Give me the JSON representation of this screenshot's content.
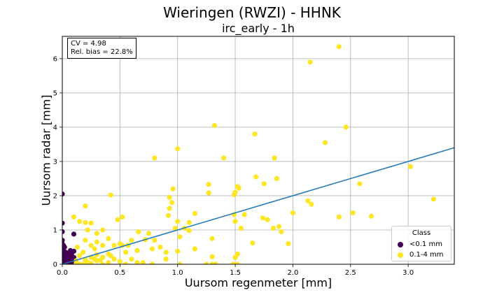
{
  "chart_data": {
    "type": "scatter",
    "title": "Wieringen (RWZI) - HHNK",
    "subtitle": "irc_early - 1h",
    "xlabel": "Uursom regenmeter [mm]",
    "ylabel": "Uursom radar [mm]",
    "xlim": [
      0,
      3.4
    ],
    "ylim": [
      0,
      6.65
    ],
    "xticks": [
      "0.0",
      "0.5",
      "1.0",
      "1.5",
      "2.0",
      "2.5",
      "3.0"
    ],
    "yticks": [
      "0",
      "1",
      "2",
      "3",
      "4",
      "5",
      "6"
    ],
    "grid": true,
    "stats": [
      "CV = 4.98",
      "Rel. bias = 22.8%"
    ],
    "legend": {
      "title": "Class",
      "position": "lower-right"
    },
    "regression_line": {
      "slope": 1.0,
      "intercept": 0.0,
      "color": "#1f77b4"
    },
    "series": [
      {
        "name": "<0.1 mm",
        "color": "#440154",
        "points": [
          [
            0.0,
            2.05
          ],
          [
            0.0,
            1.2
          ],
          [
            0.0,
            0.95
          ],
          [
            0.0,
            0.7
          ],
          [
            0.0,
            0.6
          ],
          [
            0.0,
            0.5
          ],
          [
            0.0,
            0.45
          ],
          [
            0.0,
            0.35
          ],
          [
            0.0,
            0.3
          ],
          [
            0.0,
            0.25
          ],
          [
            0.0,
            0.2
          ],
          [
            0.0,
            0.15
          ],
          [
            0.0,
            0.1
          ],
          [
            0.0,
            0.05
          ],
          [
            0.0,
            0.0
          ],
          [
            0.01,
            0.55
          ],
          [
            0.01,
            0.4
          ],
          [
            0.01,
            0.3
          ],
          [
            0.01,
            0.12
          ],
          [
            0.02,
            0.5
          ],
          [
            0.02,
            0.25
          ],
          [
            0.02,
            0.08
          ],
          [
            0.03,
            0.35
          ],
          [
            0.03,
            0.2
          ],
          [
            0.03,
            0.05
          ],
          [
            0.04,
            0.3
          ],
          [
            0.04,
            0.15
          ],
          [
            0.05,
            0.22
          ],
          [
            0.05,
            0.1
          ],
          [
            0.06,
            0.18
          ],
          [
            0.06,
            0.3
          ],
          [
            0.07,
            0.05
          ],
          [
            0.07,
            0.4
          ],
          [
            0.08,
            0.12
          ],
          [
            0.08,
            0.28
          ],
          [
            0.09,
            0.02
          ],
          [
            0.1,
            0.88
          ],
          [
            0.1,
            0.2
          ],
          [
            0.1,
            0.38
          ],
          [
            0.11,
            0.1
          ]
        ]
      },
      {
        "name": "0.1-4 mm",
        "color": "#fde725",
        "points": [
          [
            2.4,
            6.35
          ],
          [
            2.15,
            5.9
          ],
          [
            1.32,
            4.05
          ],
          [
            2.46,
            4.0
          ],
          [
            1.67,
            3.8
          ],
          [
            2.28,
            3.55
          ],
          [
            1.0,
            3.37
          ],
          [
            0.8,
            3.1
          ],
          [
            1.4,
            3.1
          ],
          [
            1.84,
            3.1
          ],
          [
            3.02,
            2.85
          ],
          [
            1.68,
            2.55
          ],
          [
            1.86,
            2.5
          ],
          [
            1.75,
            2.35
          ],
          [
            2.58,
            2.35
          ],
          [
            1.27,
            2.33
          ],
          [
            1.52,
            2.27
          ],
          [
            1.53,
            2.22
          ],
          [
            0.96,
            2.2
          ],
          [
            1.5,
            2.1
          ],
          [
            1.27,
            2.08
          ],
          [
            0.42,
            2.02
          ],
          [
            1.49,
            2.03
          ],
          [
            0.93,
            1.95
          ],
          [
            3.22,
            1.9
          ],
          [
            0.95,
            1.8
          ],
          [
            2.13,
            1.85
          ],
          [
            2.16,
            1.75
          ],
          [
            0.2,
            1.7
          ],
          [
            0.93,
            1.63
          ],
          [
            2.52,
            1.5
          ],
          [
            2.0,
            1.5
          ],
          [
            1.15,
            1.48
          ],
          [
            1.49,
            1.45
          ],
          [
            1.58,
            1.45
          ],
          [
            0.92,
            1.42
          ],
          [
            0.1,
            1.38
          ],
          [
            0.52,
            1.38
          ],
          [
            0.48,
            1.3
          ],
          [
            0.15,
            1.25
          ],
          [
            0.2,
            1.22
          ],
          [
            0.25,
            1.2
          ],
          [
            1.74,
            1.35
          ],
          [
            1.78,
            1.3
          ],
          [
            2.4,
            1.38
          ],
          [
            2.68,
            1.4
          ],
          [
            1.5,
            1.25
          ],
          [
            1.1,
            1.22
          ],
          [
            1.0,
            1.25
          ],
          [
            1.55,
            1.05
          ],
          [
            1.83,
            1.05
          ],
          [
            1.88,
            1.1
          ],
          [
            1.06,
            1.05
          ],
          [
            0.98,
            1.05
          ],
          [
            1.1,
            0.98
          ],
          [
            0.35,
            1.0
          ],
          [
            0.22,
            1.0
          ],
          [
            1.9,
            0.95
          ],
          [
            0.66,
            0.95
          ],
          [
            0.75,
            0.9
          ],
          [
            0.3,
            0.9
          ],
          [
            1.02,
            0.8
          ],
          [
            1.3,
            0.75
          ],
          [
            0.72,
            0.72
          ],
          [
            0.6,
            0.7
          ],
          [
            0.8,
            0.7
          ],
          [
            0.4,
            0.75
          ],
          [
            0.2,
            0.7
          ],
          [
            0.3,
            0.65
          ],
          [
            0.5,
            0.6
          ],
          [
            1.65,
            0.62
          ],
          [
            1.96,
            0.6
          ],
          [
            0.25,
            0.55
          ],
          [
            0.35,
            0.55
          ],
          [
            0.45,
            0.55
          ],
          [
            0.52,
            0.55
          ],
          [
            0.57,
            0.55
          ],
          [
            0.85,
            0.5
          ],
          [
            0.78,
            0.45
          ],
          [
            0.13,
            0.5
          ],
          [
            0.28,
            0.45
          ],
          [
            0.65,
            0.4
          ],
          [
            1.15,
            0.45
          ],
          [
            0.9,
            0.35
          ],
          [
            1.0,
            0.38
          ],
          [
            0.55,
            0.35
          ],
          [
            0.18,
            0.35
          ],
          [
            0.4,
            0.3
          ],
          [
            0.3,
            0.28
          ],
          [
            1.52,
            0.3
          ],
          [
            1.5,
            0.2
          ],
          [
            1.3,
            0.22
          ],
          [
            0.15,
            0.25
          ],
          [
            0.25,
            0.2
          ],
          [
            0.35,
            0.2
          ],
          [
            0.45,
            0.15
          ],
          [
            0.6,
            0.15
          ],
          [
            0.9,
            0.15
          ],
          [
            0.12,
            0.1
          ],
          [
            0.2,
            0.12
          ],
          [
            0.3,
            0.1
          ],
          [
            0.4,
            0.05
          ],
          [
            0.5,
            0.08
          ],
          [
            0.65,
            0.05
          ],
          [
            0.7,
            0.05
          ],
          [
            0.78,
            0.0
          ],
          [
            0.55,
            0.0
          ],
          [
            0.35,
            0.0
          ],
          [
            0.25,
            0.02
          ],
          [
            0.15,
            0.0
          ],
          [
            1.25,
            0.0
          ],
          [
            1.3,
            0.0
          ],
          [
            1.33,
            0.0
          ],
          [
            1.02,
            0.0
          ],
          [
            1.52,
            0.0
          ],
          [
            1.48,
            0.0
          ],
          [
            0.12,
            0.02
          ],
          [
            0.18,
            0.0
          ],
          [
            0.22,
            0.06
          ],
          [
            0.28,
            0.15
          ],
          [
            0.42,
            0.25
          ],
          [
            0.33,
            0.12
          ]
        ]
      }
    ]
  }
}
